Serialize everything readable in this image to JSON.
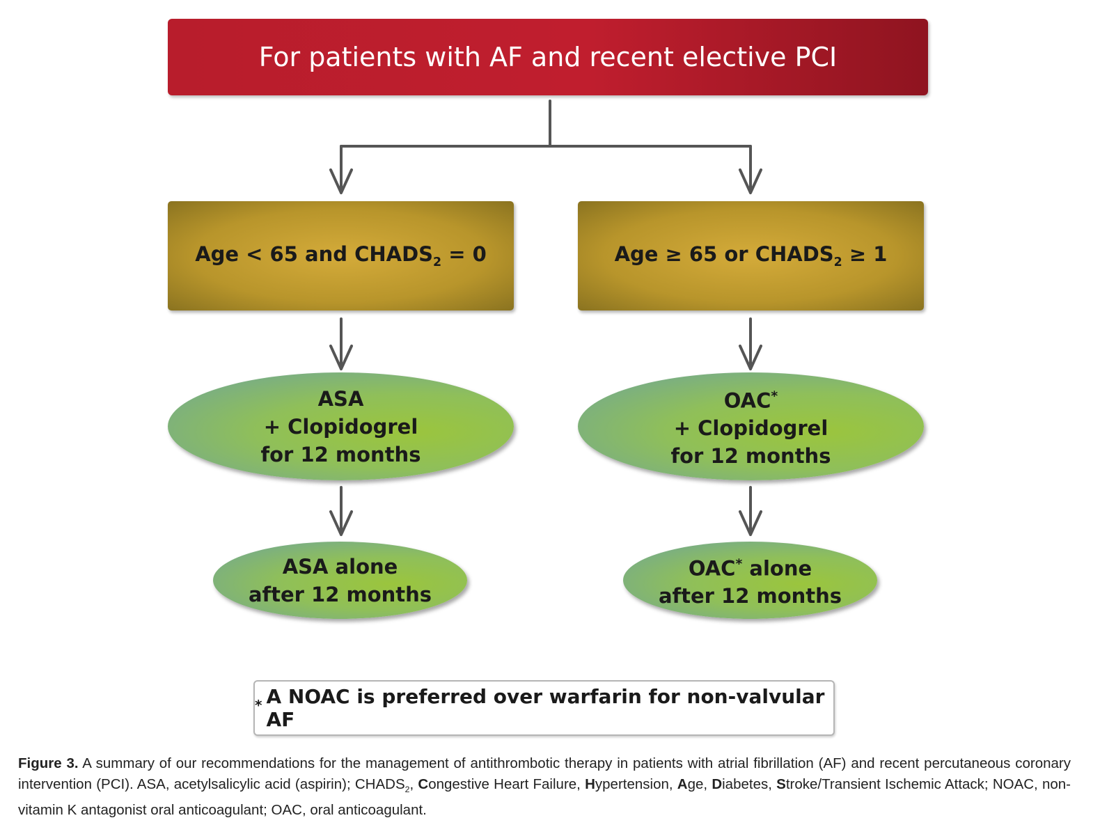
{
  "title": "For patients with AF and recent elective PCI",
  "left": {
    "criterion_pre": "Age < 65 and CHADS",
    "criterion_sub": "2",
    "criterion_post": " = 0",
    "therapy_line1": "ASA",
    "therapy_line2": "+ Clopidogrel",
    "therapy_line3": "for 12 months",
    "after_line1": "ASA alone",
    "after_line2": "after 12 months"
  },
  "right": {
    "criterion_pre": "Age ≥ 65 or CHADS",
    "criterion_sub": "2",
    "criterion_post": " ≥ 1",
    "therapy_line1": "OAC",
    "therapy_mark": "*",
    "therapy_line2": "+ Clopidogrel",
    "therapy_line3": "for 12 months",
    "after_line1_a": "OAC",
    "after_mark": "*",
    "after_line1_b": " alone",
    "after_line2": "after 12 months"
  },
  "note": {
    "mark": "*",
    "text": "A NOAC is preferred over warfarin for non-valvular AF"
  },
  "caption": {
    "label": "Figure 3.",
    "part1": " A summary of our recommendations for the management of antithrombotic therapy in patients with atrial fibrillation (AF) and recent percutaneous coronary intervention (PCI). ASA, acetylsalicylic acid (aspirin); CHADS",
    "sub": "2",
    "part2": ", ",
    "c": "C",
    "c_rest": "ongestive Heart Failure, ",
    "h": "H",
    "h_rest": "ypertension, ",
    "a": "A",
    "a_rest": "ge, ",
    "d": "D",
    "d_rest": "iabetes, ",
    "s": "S",
    "s_rest": "troke/Transient Ischemic Attack; NOAC, non-vitamin K antagonist oral anticoagulant; OAC, oral anticoagulant."
  }
}
